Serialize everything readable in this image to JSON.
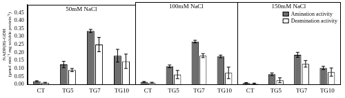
{
  "chart_data": [
    {
      "type": "bar",
      "title": "50mM NaCl",
      "y_label": [
        "NADP(H)-GDH",
        "(μmol min⁻¹ mg soluble protein⁻¹)"
      ],
      "categories": [
        "CT",
        "TG5",
        "TG7",
        "TG10"
      ],
      "series": [
        {
          "name": "Amination activity",
          "color": "#6e6e6e",
          "values": [
            0.02,
            0.125,
            0.335,
            0.18
          ],
          "errors": [
            0.003,
            0.02,
            0.01,
            0.04
          ]
        },
        {
          "name": "Deamination activity",
          "color": "#ffffff",
          "values": [
            0.01,
            0.09,
            0.25,
            0.145
          ],
          "errors": [
            0.003,
            0.01,
            0.045,
            0.045
          ]
        }
      ],
      "ylim": [
        0,
        0.5
      ],
      "yticks": [
        {
          "value": 0,
          "label": "0.00"
        },
        {
          "value": 0.05,
          "label": "0.05"
        },
        {
          "value": 0.1,
          "label": "0.10"
        },
        {
          "value": 0.15,
          "label": "0.15"
        },
        {
          "value": 0.2,
          "label": "0.20"
        },
        {
          "value": 0.25,
          "label": "0.25"
        },
        {
          "value": 0.3,
          "label": "0.30"
        },
        {
          "value": 0.35,
          "label": "0.35"
        },
        {
          "value": 0.4,
          "label": "0.40"
        },
        {
          "value": 0.45,
          "label": "0.45"
        }
      ],
      "grid": false
    },
    {
      "type": "bar",
      "title": "100mM NaCl",
      "categories": [
        "CT",
        "TG5",
        "TG7",
        "TG10"
      ],
      "series": [
        {
          "name": "Amination activity",
          "color": "#6e6e6e",
          "values": [
            0.015,
            0.11,
            0.26,
            0.17
          ],
          "errors": [
            0.003,
            0.008,
            0.008,
            0.008
          ]
        },
        {
          "name": "Deamination activity",
          "color": "#ffffff",
          "values": [
            0.01,
            0.06,
            0.175,
            0.07
          ],
          "errors": [
            0.003,
            0.025,
            0.012,
            0.035
          ]
        }
      ],
      "ylim": [
        0,
        0.5
      ],
      "yticks": [
        0,
        0.05,
        0.1,
        0.15,
        0.2,
        0.25,
        0.3,
        0.35,
        0.4,
        0.45
      ],
      "grid": false,
      "tick_labels": "x"
    },
    {
      "type": "bar",
      "title": "150mM NaCl",
      "categories": [
        "CT",
        "TG5",
        "TG7",
        "TG10"
      ],
      "series": [
        {
          "name": "Amination activity",
          "color": "#6e6e6e",
          "values": [
            0.008,
            0.062,
            0.18,
            0.1
          ],
          "errors": [
            0.003,
            0.008,
            0.015,
            0.01
          ]
        },
        {
          "name": "Deamination activity",
          "color": "#ffffff",
          "values": [
            0.005,
            0.025,
            0.125,
            0.075
          ],
          "errors": [
            0.003,
            0.015,
            0.02,
            0.025
          ]
        }
      ],
      "ylim": [
        0,
        0.5
      ],
      "yticks": [
        0,
        0.05,
        0.1,
        0.15,
        0.2,
        0.25,
        0.3,
        0.35,
        0.4,
        0.45
      ],
      "grid": false,
      "tick_labels": "x",
      "legend": "upper right"
    }
  ]
}
